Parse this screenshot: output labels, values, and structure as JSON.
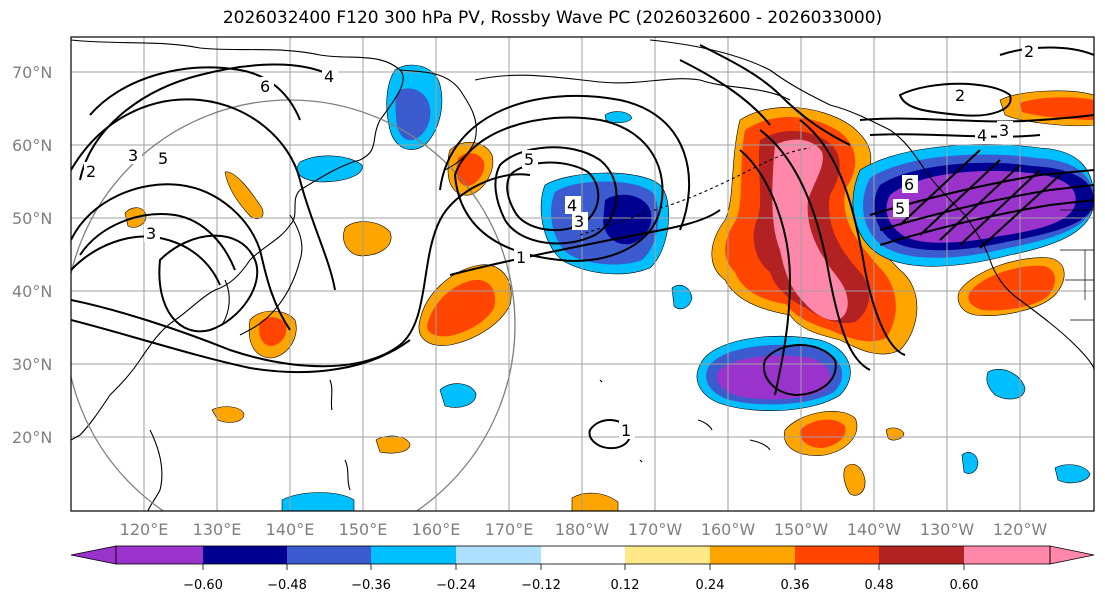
{
  "title": "2026032400 F120 300 hPa PV, Rossby Wave PC (2026032600 - 2026033000)",
  "lat_labels": [
    "70°N",
    "60°N",
    "50°N",
    "40°N",
    "30°N",
    "20°N"
  ],
  "lon_labels": [
    "120°E",
    "130°E",
    "140°E",
    "150°E",
    "160°E",
    "170°E",
    "180°W",
    "170°W",
    "160°W",
    "150°W",
    "140°W",
    "130°W",
    "120°W"
  ],
  "colorbar": {
    "colors": [
      "#9933cc",
      "#000090",
      "#3b5bcf",
      "#00bfff",
      "#b0e0ff",
      "#ffffff",
      "#ffe88a",
      "#ffa500",
      "#ff4500",
      "#b22222",
      "#ff88aa"
    ],
    "tick_labels": [
      "−0.60",
      "−0.48",
      "−0.36",
      "−0.24",
      "−0.12",
      "0.12",
      "0.24",
      "0.36",
      "0.48",
      "0.60"
    ]
  },
  "contour_labels": {
    "c1": "1",
    "c2": "2",
    "c3": "3",
    "c4": "4",
    "c5": "5",
    "c6": "6"
  },
  "colors": {
    "grid": "#a0a0a0",
    "coast": "#000000",
    "contour": "#000000"
  }
}
